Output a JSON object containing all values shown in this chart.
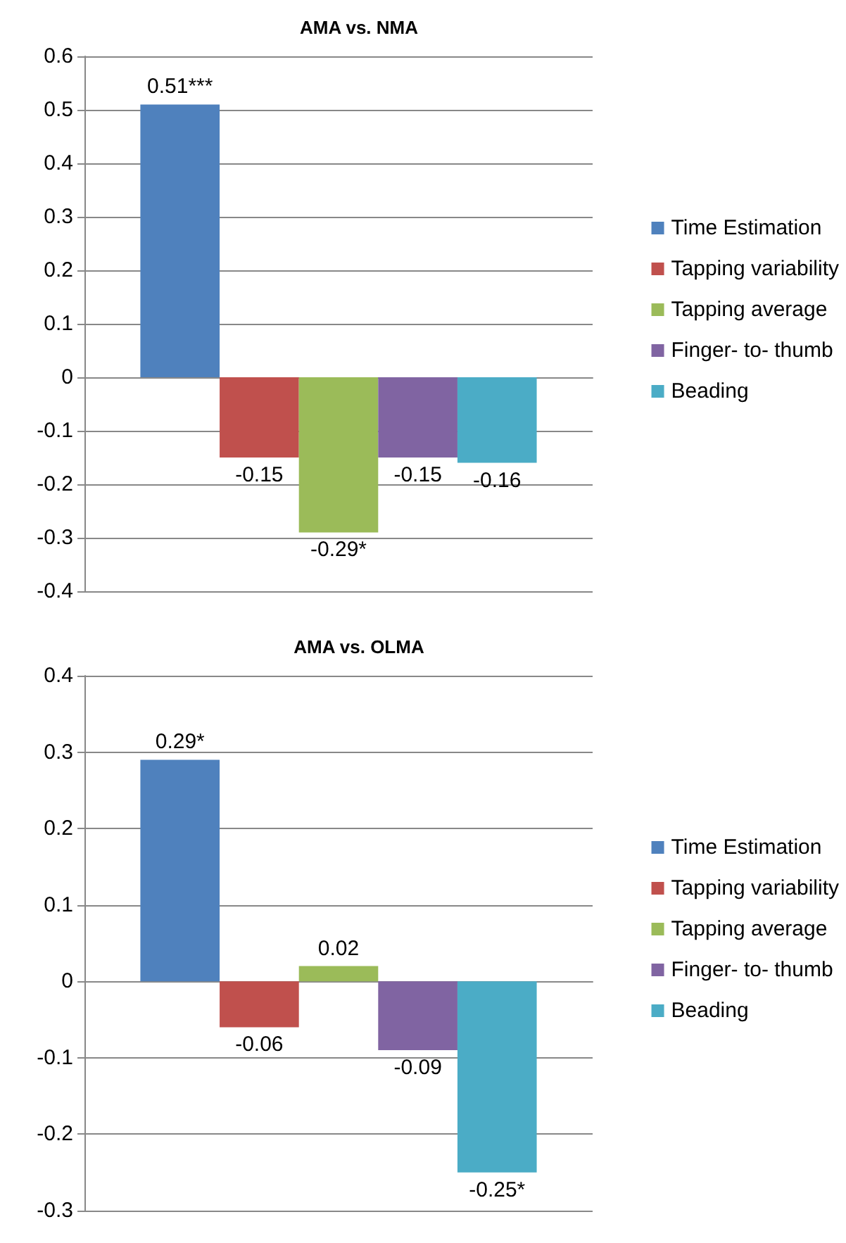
{
  "chart_data": [
    {
      "type": "bar",
      "title": "AMA vs. NMA",
      "categories": [
        null
      ],
      "ylim": [
        -0.4,
        0.6
      ],
      "yticks": [
        -0.4,
        -0.3,
        -0.2,
        -0.1,
        0,
        0.1,
        0.2,
        0.3,
        0.4,
        0.5,
        0.6
      ],
      "grid": "y",
      "legend": "right",
      "series": [
        {
          "name": "Time Estimation",
          "color": "#4f81bd",
          "values": [
            0.51
          ],
          "value_labels": [
            "0.51***"
          ]
        },
        {
          "name": "Tapping variability",
          "color": "#c0504d",
          "values": [
            -0.15
          ],
          "value_labels": [
            "-0.15"
          ]
        },
        {
          "name": "Tapping average",
          "color": "#9bbb59",
          "values": [
            -0.29
          ],
          "value_labels": [
            "-0.29*"
          ]
        },
        {
          "name": "Finger- to- thumb",
          "color": "#8064a2",
          "values": [
            -0.15
          ],
          "value_labels": [
            "-0.15"
          ]
        },
        {
          "name": "Beading",
          "color": "#4bacc6",
          "values": [
            -0.16
          ],
          "value_labels": [
            "-0.16"
          ]
        }
      ]
    },
    {
      "type": "bar",
      "title": "AMA vs. OLMA",
      "categories": [
        null
      ],
      "ylim": [
        -0.3,
        0.4
      ],
      "yticks": [
        -0.3,
        -0.2,
        -0.1,
        0,
        0.1,
        0.2,
        0.3,
        0.4
      ],
      "grid": "y",
      "legend": "right",
      "series": [
        {
          "name": "Time Estimation",
          "color": "#4f81bd",
          "values": [
            0.29
          ],
          "value_labels": [
            "0.29*"
          ]
        },
        {
          "name": "Tapping variability",
          "color": "#c0504d",
          "values": [
            -0.06
          ],
          "value_labels": [
            "-0.06"
          ]
        },
        {
          "name": "Tapping average",
          "color": "#9bbb59",
          "values": [
            0.02
          ],
          "value_labels": [
            "0.02"
          ]
        },
        {
          "name": "Finger- to- thumb",
          "color": "#8064a2",
          "values": [
            -0.09
          ],
          "value_labels": [
            "-0.09"
          ]
        },
        {
          "name": "Beading",
          "color": "#4bacc6",
          "values": [
            -0.25
          ],
          "value_labels": [
            "-0.25*"
          ]
        }
      ]
    }
  ]
}
